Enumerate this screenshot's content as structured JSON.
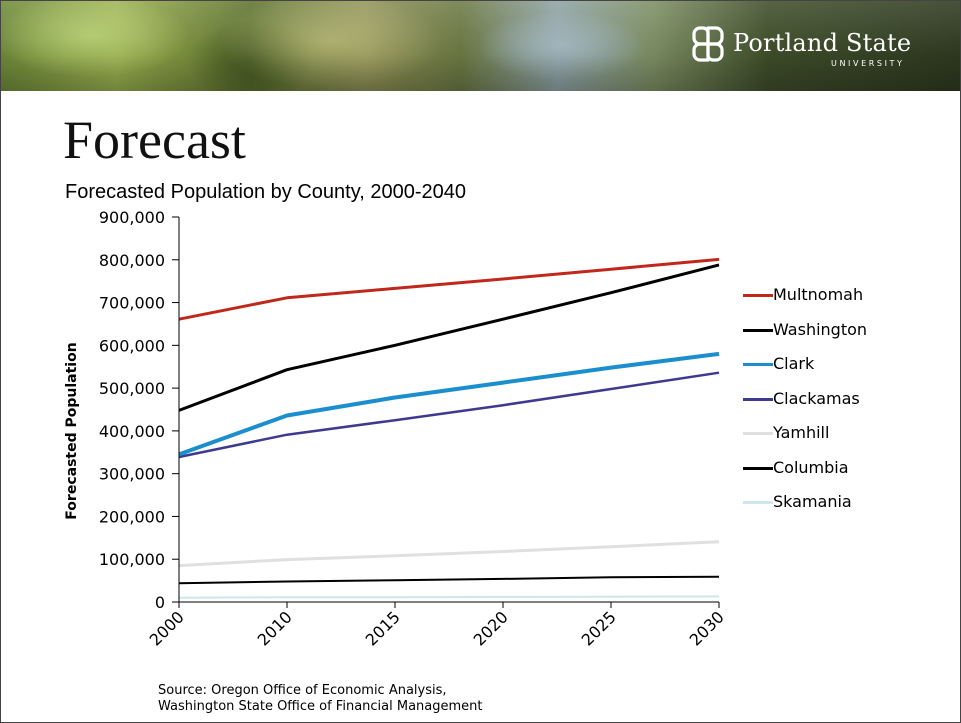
{
  "slide": {
    "logo_name": "Portland State",
    "logo_subtitle": "UNIVERSITY",
    "title": "Forecast",
    "source_line_1": "Source: Oregon Office of Economic Analysis,",
    "source_line_2": "Washington State Office of Financial Management"
  },
  "colors": {
    "multnomah": "#c0281c",
    "washington": "#000000",
    "clark": "#1b8fce",
    "clackamas": "#3d3a8f",
    "yamhill": "#e0e0e0",
    "columbia": "#000000",
    "skamania": "#cde8ea"
  },
  "chart_data": {
    "type": "line",
    "title": "Forecasted Population by County, 2000-2040",
    "xlabel": "",
    "ylabel": "Forecasted Population",
    "categories": [
      "2000",
      "2010",
      "2015",
      "2020",
      "2025",
      "2030"
    ],
    "ylim": [
      0,
      900000
    ],
    "yticks": [
      "900,000",
      "800,000",
      "700,000",
      "600,000",
      "500,000",
      "400,000",
      "300,000",
      "200,000",
      "100,000",
      "0"
    ],
    "legend_position": "right",
    "grid": false,
    "series": [
      {
        "name": "Multnomah",
        "color_key": "multnomah",
        "width": 3,
        "values": [
          661000,
          711000,
          733000,
          755000,
          778000,
          801000
        ]
      },
      {
        "name": "Washington",
        "color_key": "washington",
        "width": 3,
        "values": [
          448000,
          543000,
          600000,
          661000,
          723000,
          788000
        ]
      },
      {
        "name": "Clark",
        "color_key": "clark",
        "width": 4,
        "values": [
          345000,
          436000,
          478000,
          513000,
          548000,
          580000
        ]
      },
      {
        "name": "Clackamas",
        "color_key": "clackamas",
        "width": 2.5,
        "values": [
          339000,
          391000,
          425000,
          460000,
          498000,
          536000
        ]
      },
      {
        "name": "Yamhill",
        "color_key": "yamhill",
        "width": 3,
        "values": [
          85000,
          99000,
          108000,
          118000,
          129000,
          141000
        ]
      },
      {
        "name": "Columbia",
        "color_key": "columbia",
        "width": 2,
        "values": [
          44000,
          48000,
          51000,
          54000,
          58000,
          59000
        ]
      },
      {
        "name": "Skamania",
        "color_key": "skamania",
        "width": 2,
        "values": [
          10000,
          11000,
          11000,
          12000,
          12500,
          13000
        ]
      }
    ]
  }
}
